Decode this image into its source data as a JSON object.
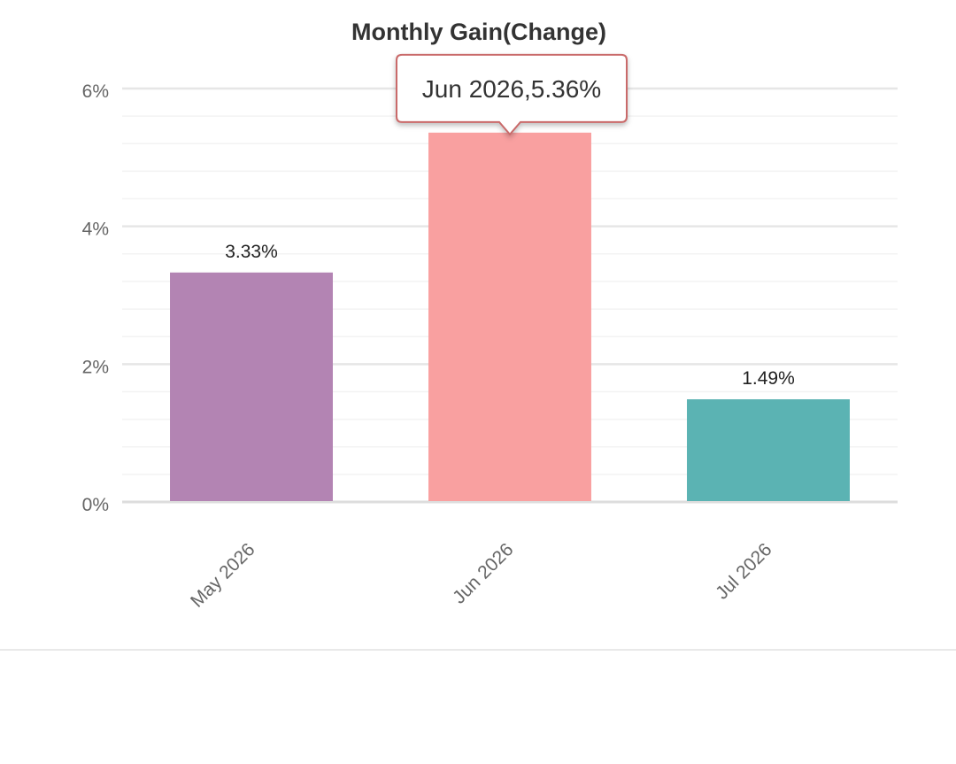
{
  "chart_data": {
    "type": "bar",
    "title": "Monthly Gain(Change)",
    "categories": [
      "May 2026",
      "Jun 2026",
      "Jul 2026"
    ],
    "values": [
      3.33,
      5.36,
      1.49
    ],
    "data_labels": [
      "3.33%",
      "",
      "1.49%"
    ],
    "bar_colors": [
      "#b384b3",
      "#f9a0a0",
      "#5bb3b3"
    ],
    "ylim": [
      0,
      6
    ],
    "yticks": [
      0,
      2,
      4,
      6
    ],
    "ytick_labels": [
      "0%",
      "2%",
      "4%",
      "6%"
    ],
    "xlabel": "",
    "ylabel": "",
    "grid": true,
    "legend": "none",
    "tooltip": {
      "category_index": 1,
      "text": "Jun 2026,5.36%",
      "border_color": "#c96a6a"
    }
  }
}
